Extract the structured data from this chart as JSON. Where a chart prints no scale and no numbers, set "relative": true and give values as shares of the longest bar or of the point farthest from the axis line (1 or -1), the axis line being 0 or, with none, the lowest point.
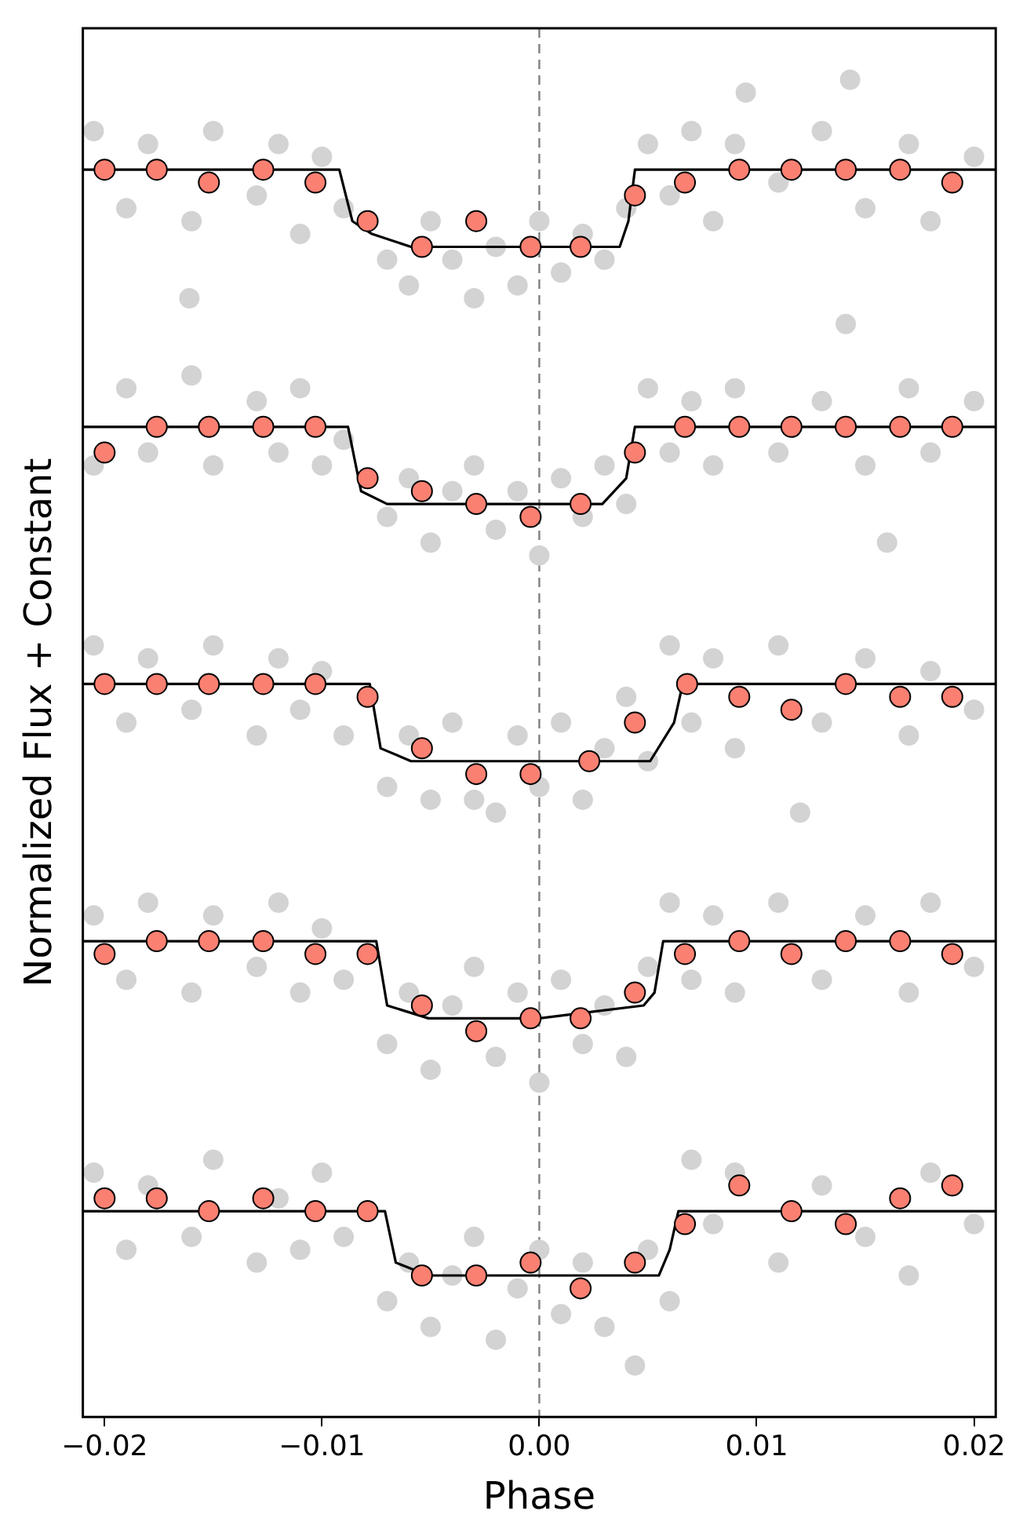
{
  "chart_data": {
    "type": "scatter",
    "xlabel": "Phase",
    "ylabel": "Normalized Flux + Constant",
    "relative": true,
    "xlim": [
      -0.021,
      0.021
    ],
    "xticks": [
      {
        "value": -0.02,
        "label": "−0.02"
      },
      {
        "value": -0.01,
        "label": "−0.01"
      },
      {
        "value": 0,
        "label": "0.00"
      },
      {
        "value": 0.01,
        "label": "0.01"
      },
      {
        "value": 0.02,
        "label": "0.02"
      }
    ],
    "grid": false,
    "legend": false,
    "marker": "circle",
    "ref_lines": [
      {
        "axis": "x",
        "value": 0,
        "color": "#808080",
        "line_style": "dashed"
      }
    ],
    "series": [
      {
        "type": "scatter",
        "color": "#d3d3d3",
        "x": [
          -0.0205,
          -0.019,
          -0.018,
          -0.0161,
          -0.016,
          -0.015,
          -0.013,
          -0.012,
          -0.011,
          -0.01,
          -0.009,
          -0.007,
          -0.006,
          -0.005,
          -0.004,
          -0.003,
          -0.002,
          -0.001,
          0.0,
          0.001,
          0.002,
          0.003,
          0.004,
          0.005,
          0.006,
          0.007,
          0.008,
          0.009,
          0.0095,
          0.011,
          0.013,
          0.0141,
          0.0143,
          0.015,
          0.017,
          0.018,
          0.02
        ],
        "values": [
          0.96,
          0.9,
          0.95,
          0.83,
          0.89,
          0.96,
          0.91,
          0.95,
          0.88,
          0.94,
          0.9,
          0.86,
          0.84,
          0.89,
          0.86,
          0.83,
          0.87,
          0.84,
          0.89,
          0.85,
          0.88,
          0.86,
          0.9,
          0.95,
          0.91,
          0.96,
          0.89,
          0.95,
          0.99,
          0.92,
          0.96,
          0.81,
          1.0,
          0.9,
          0.95,
          0.89,
          0.94
        ]
      },
      {
        "type": "scatter",
        "color": "#d3d3d3",
        "x": [
          -0.0205,
          -0.019,
          -0.018,
          -0.016,
          -0.015,
          -0.013,
          -0.012,
          -0.011,
          -0.01,
          -0.009,
          -0.007,
          -0.006,
          -0.005,
          -0.004,
          -0.003,
          -0.002,
          -0.001,
          0.0,
          0.001,
          0.002,
          0.003,
          0.004,
          0.005,
          0.006,
          0.007,
          0.008,
          0.009,
          0.011,
          0.013,
          0.015,
          0.016,
          0.017,
          0.018,
          0.02
        ],
        "values": [
          0.7,
          0.76,
          0.71,
          0.77,
          0.7,
          0.75,
          0.71,
          0.76,
          0.7,
          0.72,
          0.66,
          0.69,
          0.64,
          0.68,
          0.7,
          0.65,
          0.68,
          0.63,
          0.69,
          0.66,
          0.7,
          0.67,
          0.76,
          0.71,
          0.75,
          0.7,
          0.76,
          0.71,
          0.75,
          0.7,
          0.64,
          0.76,
          0.71,
          0.75
        ]
      },
      {
        "type": "scatter",
        "color": "#d3d3d3",
        "x": [
          -0.0205,
          -0.019,
          -0.018,
          -0.016,
          -0.015,
          -0.013,
          -0.012,
          -0.011,
          -0.01,
          -0.009,
          -0.007,
          -0.006,
          -0.005,
          -0.004,
          -0.003,
          -0.002,
          -0.001,
          0.0,
          0.001,
          0.002,
          0.003,
          0.004,
          0.005,
          0.006,
          0.007,
          0.008,
          0.009,
          0.011,
          0.012,
          0.013,
          0.015,
          0.017,
          0.018,
          0.02
        ],
        "values": [
          0.56,
          0.5,
          0.55,
          0.51,
          0.56,
          0.49,
          0.55,
          0.51,
          0.54,
          0.49,
          0.45,
          0.49,
          0.44,
          0.5,
          0.44,
          0.43,
          0.49,
          0.45,
          0.5,
          0.44,
          0.48,
          0.52,
          0.47,
          0.56,
          0.5,
          0.55,
          0.48,
          0.56,
          0.43,
          0.5,
          0.55,
          0.49,
          0.54,
          0.51
        ]
      },
      {
        "type": "scatter",
        "color": "#d3d3d3",
        "x": [
          -0.0205,
          -0.019,
          -0.018,
          -0.016,
          -0.015,
          -0.013,
          -0.012,
          -0.011,
          -0.01,
          -0.009,
          -0.007,
          -0.006,
          -0.005,
          -0.004,
          -0.003,
          -0.002,
          -0.001,
          0.0,
          0.001,
          0.002,
          0.003,
          0.004,
          0.005,
          0.006,
          0.007,
          0.008,
          0.009,
          0.011,
          0.013,
          0.015,
          0.017,
          0.018,
          0.02
        ],
        "values": [
          0.35,
          0.3,
          0.36,
          0.29,
          0.35,
          0.31,
          0.36,
          0.29,
          0.34,
          0.3,
          0.25,
          0.29,
          0.23,
          0.28,
          0.31,
          0.24,
          0.29,
          0.22,
          0.3,
          0.25,
          0.28,
          0.24,
          0.31,
          0.36,
          0.3,
          0.35,
          0.29,
          0.36,
          0.3,
          0.35,
          0.29,
          0.36,
          0.31
        ]
      },
      {
        "type": "scatter",
        "color": "#d3d3d3",
        "x": [
          -0.0205,
          -0.019,
          -0.018,
          -0.016,
          -0.015,
          -0.013,
          -0.012,
          -0.011,
          -0.01,
          -0.009,
          -0.007,
          -0.006,
          -0.005,
          -0.004,
          -0.003,
          -0.002,
          -0.001,
          0.0,
          0.001,
          0.002,
          0.003,
          0.0044,
          0.005,
          0.006,
          0.007,
          0.008,
          0.009,
          0.011,
          0.013,
          0.015,
          0.017,
          0.018,
          0.02
        ],
        "values": [
          0.15,
          0.09,
          0.14,
          0.1,
          0.16,
          0.08,
          0.13,
          0.09,
          0.15,
          0.1,
          0.05,
          0.08,
          0.03,
          0.07,
          0.1,
          0.02,
          0.06,
          0.09,
          0.04,
          0.08,
          0.03,
          0.0,
          0.09,
          0.05,
          0.16,
          0.11,
          0.15,
          0.08,
          0.14,
          0.1,
          0.07,
          0.15,
          0.11
        ]
      },
      {
        "type": "line",
        "marker": "none",
        "color": "#000000",
        "x": [
          -0.021,
          -0.0092,
          -0.0086,
          -0.0077,
          -0.0059,
          0.0037,
          0.0041,
          0.0044,
          0.021
        ],
        "values": [
          0.93,
          0.93,
          0.89,
          0.88,
          0.87,
          0.87,
          0.89,
          0.93,
          0.93
        ]
      },
      {
        "type": "line",
        "marker": "none",
        "color": "#000000",
        "x": [
          -0.021,
          -0.0088,
          -0.0082,
          -0.007,
          -0.0041,
          0.0029,
          0.004,
          0.0044,
          0.021
        ],
        "values": [
          0.73,
          0.73,
          0.68,
          0.67,
          0.67,
          0.67,
          0.69,
          0.73,
          0.73
        ]
      },
      {
        "type": "line",
        "marker": "none",
        "color": "#000000",
        "x": [
          -0.021,
          -0.0078,
          -0.0073,
          -0.0059,
          0.0,
          0.0051,
          0.0062,
          0.0066,
          0.021
        ],
        "values": [
          0.53,
          0.53,
          0.48,
          0.47,
          0.47,
          0.47,
          0.5,
          0.53,
          0.53
        ]
      },
      {
        "type": "line",
        "marker": "none",
        "color": "#000000",
        "x": [
          -0.021,
          -0.0075,
          -0.007,
          -0.0051,
          0.0,
          0.0048,
          0.0053,
          0.0057,
          0.021
        ],
        "values": [
          0.33,
          0.33,
          0.28,
          0.27,
          0.27,
          0.28,
          0.29,
          0.33,
          0.33
        ]
      },
      {
        "type": "line",
        "marker": "none",
        "color": "#000000",
        "x": [
          -0.021,
          -0.0071,
          -0.0066,
          -0.0051,
          0.0,
          0.0055,
          0.006,
          0.0064,
          0.021
        ],
        "values": [
          0.12,
          0.12,
          0.08,
          0.07,
          0.07,
          0.07,
          0.09,
          0.12,
          0.12
        ]
      },
      {
        "type": "scatter",
        "color": "#fa8072",
        "x": [
          -0.02,
          -0.0176,
          -0.0152,
          -0.0127,
          -0.0103,
          -0.0079,
          -0.0054,
          -0.0029,
          -0.0004,
          0.0019,
          0.0044,
          0.0067,
          0.0092,
          0.0116,
          0.0141,
          0.0166,
          0.019
        ],
        "values": [
          0.93,
          0.93,
          0.92,
          0.93,
          0.92,
          0.89,
          0.87,
          0.89,
          0.87,
          0.87,
          0.91,
          0.92,
          0.93,
          0.93,
          0.93,
          0.93,
          0.92
        ]
      },
      {
        "type": "scatter",
        "color": "#fa8072",
        "x": [
          -0.02,
          -0.0176,
          -0.0152,
          -0.0127,
          -0.0103,
          -0.0079,
          -0.0054,
          -0.0029,
          -0.0004,
          0.0019,
          0.0044,
          0.0067,
          0.0092,
          0.0116,
          0.0141,
          0.0166,
          0.019
        ],
        "values": [
          0.71,
          0.73,
          0.73,
          0.73,
          0.73,
          0.69,
          0.68,
          0.67,
          0.66,
          0.67,
          0.71,
          0.73,
          0.73,
          0.73,
          0.73,
          0.73,
          0.73
        ]
      },
      {
        "type": "scatter",
        "color": "#fa8072",
        "x": [
          -0.02,
          -0.0176,
          -0.0152,
          -0.0127,
          -0.0103,
          -0.0079,
          -0.0054,
          -0.0029,
          -0.0004,
          0.0023,
          0.0044,
          0.0068,
          0.0092,
          0.0116,
          0.0141,
          0.0166,
          0.019
        ],
        "values": [
          0.53,
          0.53,
          0.53,
          0.53,
          0.53,
          0.52,
          0.48,
          0.46,
          0.46,
          0.47,
          0.5,
          0.53,
          0.52,
          0.51,
          0.53,
          0.52,
          0.52
        ]
      },
      {
        "type": "scatter",
        "color": "#fa8072",
        "x": [
          -0.02,
          -0.0176,
          -0.0152,
          -0.0127,
          -0.0103,
          -0.0079,
          -0.0054,
          -0.0029,
          -0.0004,
          0.0019,
          0.0044,
          0.0067,
          0.0092,
          0.0116,
          0.0141,
          0.0166,
          0.019
        ],
        "values": [
          0.32,
          0.33,
          0.33,
          0.33,
          0.32,
          0.32,
          0.28,
          0.26,
          0.27,
          0.27,
          0.29,
          0.32,
          0.33,
          0.32,
          0.33,
          0.33,
          0.32
        ]
      },
      {
        "type": "scatter",
        "color": "#fa8072",
        "x": [
          -0.02,
          -0.0176,
          -0.0152,
          -0.0127,
          -0.0103,
          -0.0079,
          -0.0054,
          -0.0029,
          -0.0004,
          0.0019,
          0.0044,
          0.0067,
          0.0092,
          0.0116,
          0.0141,
          0.0166,
          0.019
        ],
        "values": [
          0.13,
          0.13,
          0.12,
          0.13,
          0.12,
          0.12,
          0.07,
          0.07,
          0.08,
          0.06,
          0.08,
          0.11,
          0.14,
          0.12,
          0.11,
          0.13,
          0.14
        ]
      }
    ]
  }
}
